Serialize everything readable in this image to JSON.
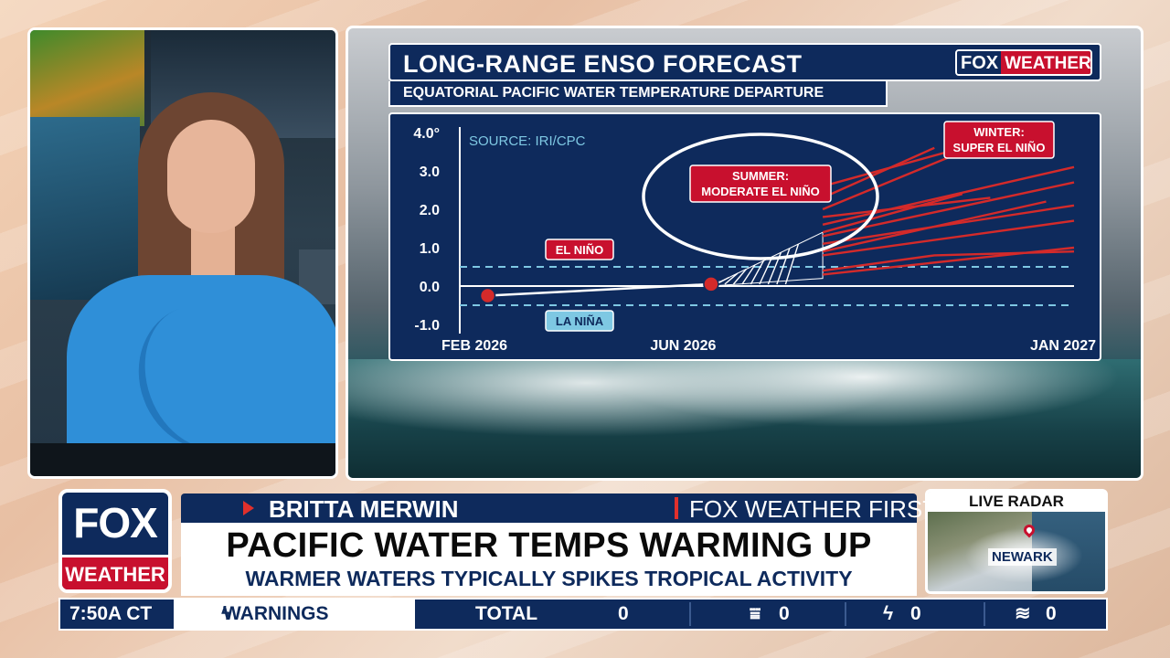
{
  "graphic": {
    "title": "LONG-RANGE ENSO FORECAST",
    "subtitle": "EQUATORIAL PACIFIC WATER TEMPERATURE DEPARTURE",
    "logo_fox": "FOX",
    "logo_weather": "WEATHER"
  },
  "chart_data": {
    "type": "line",
    "source": "SOURCE: IRI/CPC",
    "ylim": [
      -1.0,
      4.0
    ],
    "yticks": [
      "4.0°",
      "3.0",
      "2.0",
      "1.0",
      "0.0",
      "-1.0"
    ],
    "ytick_values": [
      4.0,
      3.0,
      2.0,
      1.0,
      0.0,
      -1.0
    ],
    "x_tick_labels": [
      "FEB 2026",
      "JUN 2026",
      "JAN 2027"
    ],
    "x_tick_months": [
      0,
      4,
      11
    ],
    "xlim_months": [
      0,
      11
    ],
    "thresholds": [
      {
        "label": "EL NIÑO",
        "value": 0.5
      },
      {
        "label": "LA NIÑA",
        "value": -0.5
      }
    ],
    "observed": {
      "x": [
        0.5,
        4.5
      ],
      "y": [
        -0.25,
        0.05
      ]
    },
    "annotations": [
      {
        "text": [
          "SUMMER:",
          "MODERATE EL NIÑO"
        ]
      },
      {
        "text": [
          "WINTER:",
          "SUPER EL NIÑO"
        ]
      }
    ],
    "series": [
      {
        "x": [
          6.5,
          11
        ],
        "y": [
          0.3,
          1.0
        ]
      },
      {
        "x": [
          6.5,
          8.5,
          11
        ],
        "y": [
          0.4,
          0.8,
          0.9
        ]
      },
      {
        "x": [
          6.5,
          11
        ],
        "y": [
          0.8,
          1.7
        ]
      },
      {
        "x": [
          6.5,
          11
        ],
        "y": [
          1.1,
          2.1
        ]
      },
      {
        "x": [
          6.5,
          11
        ],
        "y": [
          1.3,
          2.7
        ]
      },
      {
        "x": [
          6.5,
          11
        ],
        "y": [
          1.6,
          3.1
        ]
      },
      {
        "x": [
          6.5,
          9.5
        ],
        "y": [
          1.8,
          2.3
        ]
      },
      {
        "x": [
          6.5,
          9.0
        ],
        "y": [
          2.0,
          3.5
        ]
      },
      {
        "x": [
          6.5,
          8.5
        ],
        "y": [
          2.3,
          3.6
        ]
      },
      {
        "x": [
          6.5,
          9.0
        ],
        "y": [
          1.4,
          2.4
        ]
      },
      {
        "x": [
          6.5,
          10.5
        ],
        "y": [
          0.9,
          2.2
        ]
      },
      {
        "x": [
          6.5,
          9.5
        ],
        "y": [
          2.6,
          3.8
        ]
      }
    ]
  },
  "lower_third": {
    "logo_fox": "FOX",
    "logo_weather": "WEATHER",
    "name": "BRITTA MERWIN",
    "role": "FOX WEATHER FIRST HOST",
    "headline": "PACIFIC WATER TEMPS WARMING UP",
    "subheadline": "WARMER WATERS TYPICALLY SPIKES TROPICAL ACTIVITY"
  },
  "radar": {
    "label": "LIVE RADAR",
    "city": "NEWARK"
  },
  "ticker": {
    "time": "7:50A CT",
    "warnings_label": "WARNINGS",
    "total_label": "TOTAL",
    "total_value": "0",
    "tornado_value": "0",
    "lightning_value": "0",
    "flood_value": "0"
  }
}
